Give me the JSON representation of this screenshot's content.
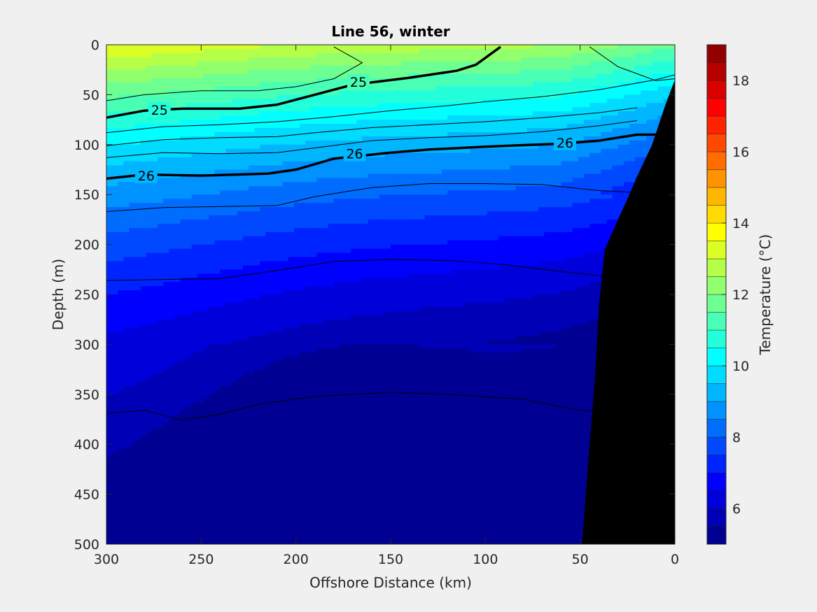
{
  "chart_data": {
    "type": "contour",
    "title": "Line 56, winter",
    "xlabel": "Offshore Distance (km)",
    "ylabel": "Depth (m)",
    "colorbar_label": "Temperature (°C)",
    "xlim": [
      300,
      0
    ],
    "ylim": [
      0,
      500
    ],
    "x_ticks": [
      "300",
      "250",
      "200",
      "150",
      "100",
      "50",
      "0"
    ],
    "y_ticks": [
      "0",
      "50",
      "100",
      "150",
      "200",
      "250",
      "300",
      "350",
      "400",
      "450",
      "500"
    ],
    "colorbar": {
      "range": [
        5,
        19
      ],
      "step": 0.5,
      "ticks": [
        "6",
        "8",
        "10",
        "12",
        "14",
        "16",
        "18"
      ],
      "colormap": "jet"
    },
    "temperature_field": {
      "description_levels": "filled temperature contours, 0.5 °C intervals",
      "surface_offshore_max": 13.5,
      "depth_500_min": 5.0
    },
    "density_contours": [
      {
        "label": "25",
        "bold": true,
        "points": [
          [
            300,
            73
          ],
          [
            280,
            66
          ],
          [
            260,
            64
          ],
          [
            230,
            64
          ],
          [
            210,
            60
          ],
          [
            190,
            50
          ],
          [
            170,
            40
          ],
          [
            140,
            33
          ],
          [
            115,
            26
          ],
          [
            105,
            20
          ],
          [
            92,
            2
          ]
        ]
      },
      {
        "label": "26",
        "bold": true,
        "points": [
          [
            300,
            134
          ],
          [
            280,
            130
          ],
          [
            250,
            131
          ],
          [
            215,
            129
          ],
          [
            200,
            125
          ],
          [
            180,
            114
          ],
          [
            150,
            108
          ],
          [
            130,
            105
          ],
          [
            100,
            102
          ],
          [
            60,
            99
          ],
          [
            40,
            96
          ],
          [
            20,
            90
          ],
          [
            5,
            90
          ]
        ]
      },
      {
        "label": "",
        "bold": false,
        "points": [
          [
            300,
            56
          ],
          [
            280,
            50
          ],
          [
            250,
            46
          ],
          [
            220,
            46
          ],
          [
            200,
            42
          ],
          [
            180,
            34
          ],
          [
            165,
            18
          ],
          [
            180,
            2
          ]
        ]
      },
      {
        "label": "",
        "bold": false,
        "points": [
          [
            300,
            88
          ],
          [
            270,
            82
          ],
          [
            240,
            80
          ],
          [
            210,
            77
          ],
          [
            180,
            72
          ],
          [
            150,
            66
          ],
          [
            120,
            61
          ],
          [
            100,
            57
          ],
          [
            70,
            52
          ],
          [
            40,
            45
          ],
          [
            10,
            35
          ],
          [
            0,
            30
          ]
        ]
      },
      {
        "label": "",
        "bold": false,
        "points": [
          [
            300,
            101
          ],
          [
            270,
            95
          ],
          [
            240,
            93
          ],
          [
            210,
            92
          ],
          [
            190,
            88
          ],
          [
            160,
            83
          ],
          [
            130,
            80
          ],
          [
            100,
            77
          ],
          [
            70,
            73
          ],
          [
            40,
            68
          ],
          [
            20,
            63
          ]
        ]
      },
      {
        "label": "",
        "bold": false,
        "points": [
          [
            300,
            113
          ],
          [
            270,
            108
          ],
          [
            240,
            109
          ],
          [
            210,
            108
          ],
          [
            185,
            102
          ],
          [
            160,
            96
          ],
          [
            130,
            93
          ],
          [
            100,
            91
          ],
          [
            70,
            87
          ],
          [
            40,
            81
          ],
          [
            20,
            76
          ]
        ]
      },
      {
        "label": "",
        "bold": false,
        "points": [
          [
            300,
            167
          ],
          [
            270,
            163
          ],
          [
            240,
            162
          ],
          [
            210,
            161
          ],
          [
            190,
            152
          ],
          [
            160,
            143
          ],
          [
            130,
            139
          ],
          [
            100,
            139
          ],
          [
            70,
            140
          ],
          [
            40,
            146
          ],
          [
            20,
            148
          ]
        ]
      },
      {
        "label": "",
        "bold": false,
        "points": [
          [
            300,
            236
          ],
          [
            270,
            235
          ],
          [
            240,
            234
          ],
          [
            210,
            226
          ],
          [
            180,
            217
          ],
          [
            150,
            215
          ],
          [
            120,
            216
          ],
          [
            90,
            220
          ],
          [
            60,
            227
          ],
          [
            30,
            233
          ]
        ]
      },
      {
        "label": "",
        "bold": false,
        "points": [
          [
            300,
            369
          ],
          [
            280,
            366
          ],
          [
            260,
            376
          ],
          [
            240,
            370
          ],
          [
            220,
            360
          ],
          [
            190,
            352
          ],
          [
            150,
            348
          ],
          [
            120,
            350
          ],
          [
            80,
            355
          ],
          [
            50,
            366
          ],
          [
            30,
            368
          ]
        ]
      },
      {
        "label": "",
        "bold": false,
        "points": [
          [
            45,
            2
          ],
          [
            30,
            22
          ],
          [
            10,
            36
          ],
          [
            0,
            34
          ]
        ]
      }
    ],
    "bathymetry": {
      "fill": "#000000",
      "points": [
        [
          0,
          35
        ],
        [
          5,
          60
        ],
        [
          12,
          100
        ],
        [
          20,
          132
        ],
        [
          24,
          150
        ],
        [
          30,
          175
        ],
        [
          37,
          205
        ],
        [
          40,
          260
        ],
        [
          42,
          330
        ],
        [
          45,
          400
        ],
        [
          49,
          500
        ]
      ]
    }
  }
}
